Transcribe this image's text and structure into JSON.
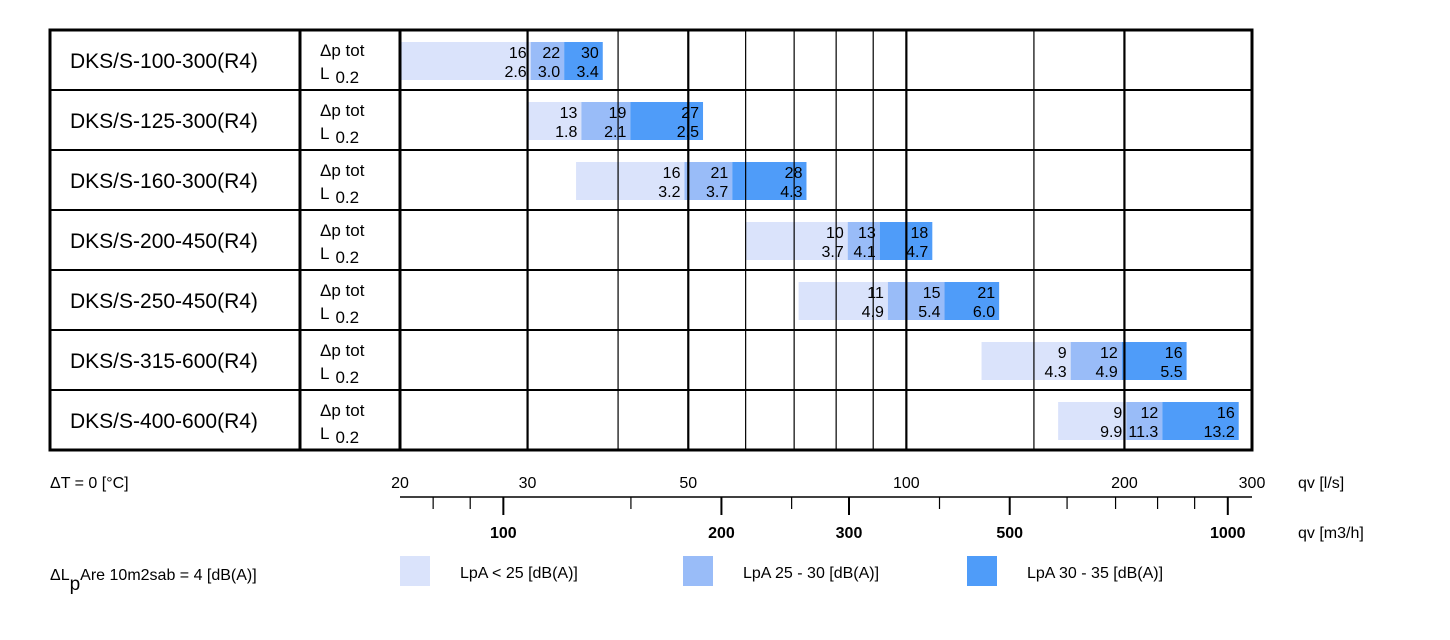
{
  "chart_data": {
    "type": "bar",
    "scale": "log",
    "temperature_note": "ΔT = 0 [°C]",
    "row_labels": {
      "pressure": "Δp tot",
      "length_prefix": "L",
      "length_value": "0.2"
    },
    "axis_ls": {
      "unit": "qv [l/s]",
      "range": [
        20,
        300
      ],
      "major_labels": [
        20,
        30,
        50,
        100,
        200,
        300
      ],
      "gridlines": [
        30,
        40,
        50,
        60,
        70,
        80,
        90,
        100,
        150,
        200
      ],
      "bold_gridlines": [
        30,
        50,
        100,
        200
      ]
    },
    "axis_m3h": {
      "unit": "qv [m3/h]",
      "major_labels": [
        100,
        200,
        300,
        500,
        1000
      ],
      "minor_ticks": [
        80,
        90,
        100,
        150,
        200,
        250,
        300,
        400,
        500,
        600,
        700,
        800,
        900,
        1000
      ]
    },
    "rows": [
      {
        "model": "DKS/S-100-300(R4)",
        "ranges": [
          [
            20,
            30.3
          ],
          [
            30.3,
            33.7
          ],
          [
            33.7,
            38.1
          ]
        ],
        "top": [
          "16",
          "22",
          "30"
        ],
        "bottom": [
          "2.6",
          "3.0",
          "3.4"
        ]
      },
      {
        "model": "DKS/S-125-300(R4)",
        "ranges": [
          [
            30,
            35.6
          ],
          [
            35.6,
            41.6
          ],
          [
            41.6,
            52.4
          ]
        ],
        "top": [
          "13",
          "19",
          "27"
        ],
        "bottom": [
          "1.8",
          "2.1",
          "2.5"
        ]
      },
      {
        "model": "DKS/S-160-300(R4)",
        "ranges": [
          [
            35,
            49.4
          ],
          [
            49.4,
            57.5
          ],
          [
            57.5,
            72.8
          ]
        ],
        "top": [
          "16",
          "21",
          "28"
        ],
        "bottom": [
          "3.2",
          "3.7",
          "4.3"
        ]
      },
      {
        "model": "DKS/S-200-450(R4)",
        "ranges": [
          [
            60,
            83
          ],
          [
            83,
            91.9
          ],
          [
            91.9,
            108.6
          ]
        ],
        "top": [
          "10",
          "13",
          "18"
        ],
        "bottom": [
          "3.7",
          "4.1",
          "4.7"
        ]
      },
      {
        "model": "DKS/S-250-450(R4)",
        "ranges": [
          [
            71,
            94.3
          ],
          [
            94.3,
            112.9
          ],
          [
            112.9,
            134.3
          ]
        ],
        "top": [
          "11",
          "15",
          "21"
        ],
        "bottom": [
          "4.9",
          "5.4",
          "6.0"
        ]
      },
      {
        "model": "DKS/S-315-600(R4)",
        "ranges": [
          [
            127,
            168.6
          ],
          [
            168.6,
            198.3
          ],
          [
            198.3,
            243.7
          ]
        ],
        "top": [
          "9",
          "12",
          "16"
        ],
        "bottom": [
          "4.3",
          "4.9",
          "5.5"
        ]
      },
      {
        "model": "DKS/S-400-600(R4)",
        "ranges": [
          [
            162,
            201.2
          ],
          [
            201.2,
            225.6
          ],
          [
            225.6,
            287.6
          ]
        ],
        "top": [
          "9",
          "12",
          "16"
        ],
        "bottom": [
          "9.9",
          "11.3",
          "13.2"
        ]
      }
    ],
    "legend": {
      "note_prefix": "ΔL",
      "note_sub": "p",
      "note_rest": "Are 10m2sab = 4 [dB(A)]",
      "items": [
        {
          "label": "LpA < 25 [dB(A)]",
          "color": "#dae3fb"
        },
        {
          "label": "LpA 25 - 30 [dB(A)]",
          "color": "#99bcf8"
        },
        {
          "label": "LpA 30 - 35 [dB(A)]",
          "color": "#4f9cf9"
        }
      ]
    }
  }
}
